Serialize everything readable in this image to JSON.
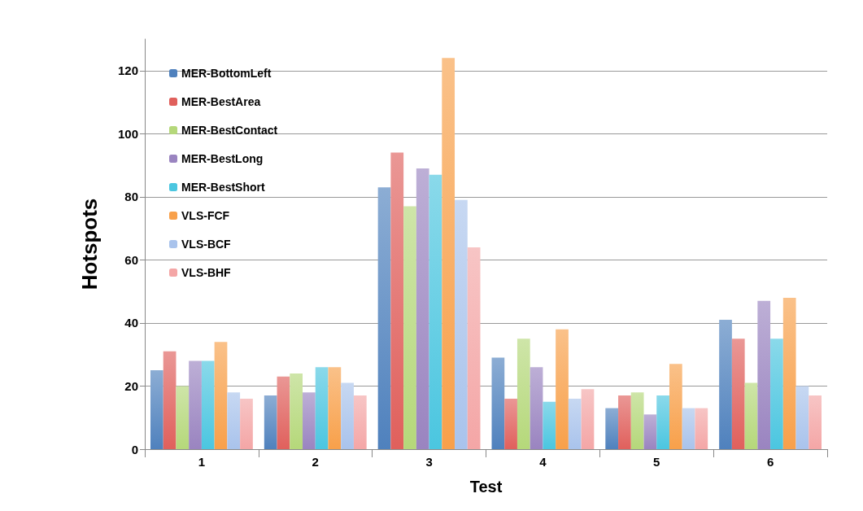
{
  "chart_data": {
    "type": "bar",
    "xlabel": "Test",
    "ylabel": "Hotspots",
    "categories": [
      "1",
      "2",
      "3",
      "4",
      "5",
      "6"
    ],
    "series": [
      {
        "name": "MER-BottomLeft",
        "color": "#4f81bd",
        "values": [
          25,
          17,
          83,
          29,
          13,
          41
        ]
      },
      {
        "name": "MER-BestArea",
        "color": "#e0605c",
        "values": [
          31,
          23,
          94,
          16,
          17,
          35
        ]
      },
      {
        "name": "MER-BestContact",
        "color": "#b5d87a",
        "values": [
          20,
          24,
          77,
          35,
          18,
          21
        ]
      },
      {
        "name": "MER-BestLong",
        "color": "#9a84c0",
        "values": [
          28,
          18,
          89,
          26,
          11,
          47
        ]
      },
      {
        "name": "MER-BestShort",
        "color": "#4bc6e0",
        "values": [
          28,
          26,
          87,
          15,
          17,
          35
        ]
      },
      {
        "name": "VLS-FCF",
        "color": "#f8a04a",
        "values": [
          34,
          26,
          124,
          38,
          27,
          48
        ]
      },
      {
        "name": "VLS-BCF",
        "color": "#a9c3ec",
        "values": [
          18,
          21,
          79,
          16,
          13,
          20
        ]
      },
      {
        "name": "VLS-BHF",
        "color": "#f4a6a6",
        "values": [
          16,
          17,
          64,
          19,
          13,
          17
        ]
      }
    ],
    "ylim": [
      0,
      130
    ],
    "yticks": [
      0,
      20,
      40,
      60,
      80,
      100,
      120
    ],
    "grid": "y",
    "legend": "top left"
  }
}
